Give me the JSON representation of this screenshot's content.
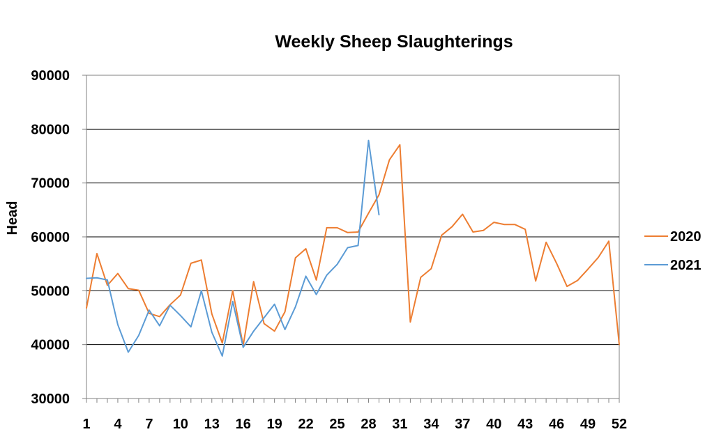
{
  "chart_data": {
    "type": "line",
    "title": "Weekly Sheep Slaughterings",
    "xlabel": "",
    "ylabel": "Head",
    "ylim": [
      30000,
      90000
    ],
    "xlim": [
      1,
      52
    ],
    "yticks": [
      30000,
      40000,
      50000,
      60000,
      70000,
      80000,
      90000
    ],
    "xtick_labels": [
      1,
      4,
      7,
      10,
      13,
      16,
      19,
      22,
      25,
      28,
      31,
      34,
      37,
      40,
      43,
      46,
      49,
      52
    ],
    "grid": "horizontal",
    "legend_position": "right",
    "series": [
      {
        "name": "2020",
        "color": "#ED7D31",
        "x": [
          1,
          2,
          3,
          4,
          5,
          6,
          7,
          8,
          9,
          10,
          11,
          12,
          13,
          14,
          15,
          16,
          17,
          18,
          19,
          20,
          21,
          22,
          23,
          24,
          25,
          26,
          27,
          28,
          29,
          30,
          31,
          32,
          33,
          34,
          35,
          36,
          37,
          38,
          39,
          40,
          41,
          42,
          43,
          44,
          45,
          46,
          47,
          48,
          49,
          50,
          51,
          52
        ],
        "values": [
          46800,
          56900,
          51000,
          53200,
          50400,
          50100,
          45800,
          45200,
          47400,
          49200,
          55100,
          55700,
          45700,
          40300,
          50000,
          39800,
          51700,
          43900,
          42500,
          46100,
          56100,
          57800,
          52000,
          61700,
          61700,
          60800,
          60900,
          64400,
          67800,
          74300,
          77100,
          44200,
          52500,
          54100,
          60300,
          61900,
          64200,
          60900,
          61200,
          62700,
          62300,
          62300,
          61400,
          51800,
          59000,
          55100,
          50800,
          51900,
          54000,
          56200,
          59200,
          40000
        ]
      },
      {
        "name": "2021",
        "color": "#5B9BD5",
        "x": [
          1,
          2,
          3,
          4,
          5,
          6,
          7,
          8,
          9,
          10,
          11,
          12,
          13,
          14,
          15,
          16,
          17,
          18,
          19,
          20,
          21,
          22,
          23,
          24,
          25,
          26,
          27,
          28,
          29
        ],
        "values": [
          52300,
          52400,
          52000,
          43700,
          38600,
          41700,
          46400,
          43500,
          47300,
          45400,
          43300,
          50000,
          42300,
          37900,
          48000,
          39500,
          42500,
          45000,
          47500,
          42800,
          47000,
          52700,
          49300,
          52900,
          54900,
          58000,
          58400,
          77900,
          64100
        ]
      }
    ]
  }
}
